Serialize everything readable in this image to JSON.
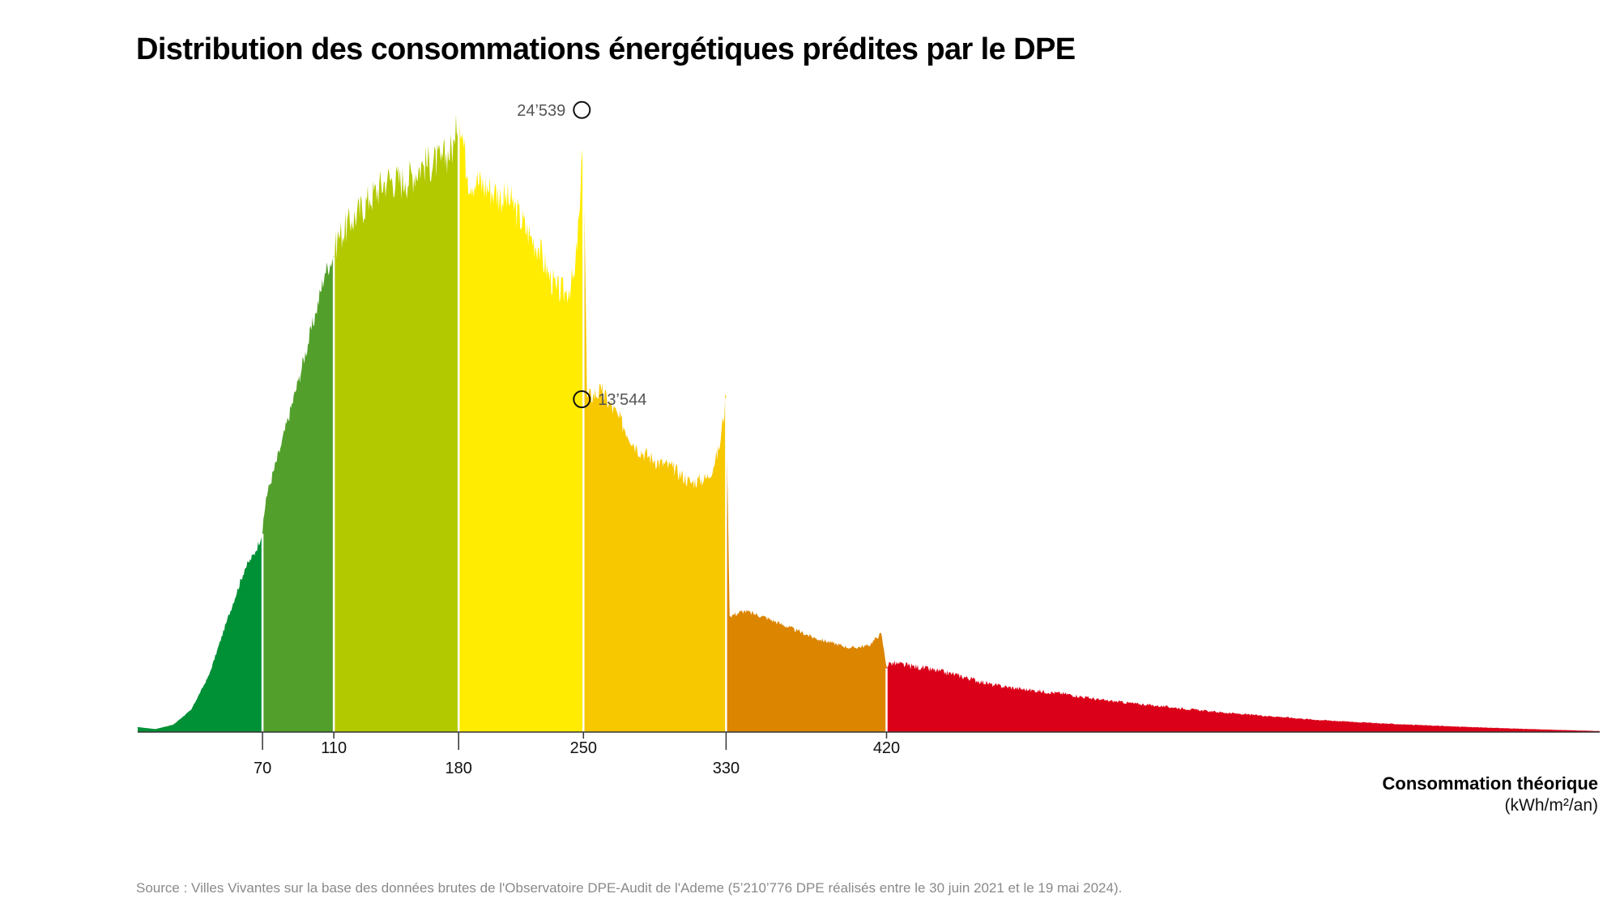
{
  "title": "Distribution des consommations énergétiques prédites par le DPE",
  "x_axis": {
    "title": "Consommation théorique",
    "unit": "(kWh/m²/an)"
  },
  "source": "Source : Villes Vivantes sur la base des données brutes de l'Observatoire DPE-Audit de l'Ademe (5’210’776 DPE réalisés entre le 30 juin 2021 et le 19 mai 2024).",
  "chart_data": {
    "type": "area",
    "title": "Distribution des consommations énergétiques prédites par le DPE",
    "xlabel": "Consommation théorique (kWh/m²/an)",
    "ylabel": "",
    "xlim": [
      0,
      820
    ],
    "ylim": [
      0,
      26500
    ],
    "grid": false,
    "legend": "none",
    "thresholds": [
      70,
      110,
      180,
      250,
      330,
      420
    ],
    "tick_labels": [
      "70",
      "110",
      "180",
      "250",
      "330",
      "420"
    ],
    "classes": [
      {
        "from": 0,
        "to": 70,
        "color": "#009036"
      },
      {
        "from": 70,
        "to": 110,
        "color": "#52a02b"
      },
      {
        "from": 110,
        "to": 180,
        "color": "#b2c900"
      },
      {
        "from": 180,
        "to": 250,
        "color": "#ffec00"
      },
      {
        "from": 250,
        "to": 330,
        "color": "#f7c700"
      },
      {
        "from": 330,
        "to": 420,
        "color": "#dc8500"
      },
      {
        "from": 420,
        "to": 820,
        "color": "#db0019"
      }
    ],
    "x": [
      0,
      10,
      20,
      30,
      40,
      50,
      60,
      66,
      70,
      72,
      80,
      90,
      100,
      105,
      110,
      112,
      120,
      130,
      140,
      150,
      160,
      170,
      178,
      180,
      185,
      190,
      200,
      210,
      220,
      225,
      230,
      235,
      240,
      245,
      248,
      250,
      252,
      260,
      270,
      280,
      290,
      300,
      310,
      320,
      326,
      330,
      332,
      340,
      350,
      360,
      370,
      380,
      390,
      400,
      410,
      417,
      420,
      422,
      440,
      460,
      480,
      500,
      520,
      540,
      560,
      580,
      600,
      620,
      640,
      660,
      680,
      700,
      720,
      740,
      760,
      780,
      800,
      820
    ],
    "values": [
      200,
      120,
      300,
      900,
      2300,
      4500,
      6600,
      7300,
      8100,
      9500,
      11500,
      14200,
      17000,
      18600,
      19300,
      20000,
      20700,
      21600,
      22400,
      22300,
      23000,
      23100,
      23800,
      25500,
      22500,
      22300,
      21900,
      21400,
      20100,
      19600,
      18600,
      17900,
      17800,
      18400,
      21200,
      24539,
      13544,
      13800,
      12700,
      11500,
      11000,
      10700,
      10100,
      10300,
      11400,
      13600,
      4700,
      4900,
      4700,
      4400,
      4100,
      3800,
      3600,
      3400,
      3500,
      4000,
      2650,
      2800,
      2600,
      2300,
      1900,
      1700,
      1550,
      1300,
      1150,
      1000,
      850,
      720,
      620,
      500,
      420,
      340,
      280,
      220,
      170,
      120,
      80,
      40
    ],
    "annotations": [
      {
        "x": 250,
        "y": 24539,
        "text": "24’539",
        "position": "left"
      },
      {
        "x": 250,
        "y": 13544,
        "text": "13’544",
        "position": "right"
      }
    ]
  }
}
